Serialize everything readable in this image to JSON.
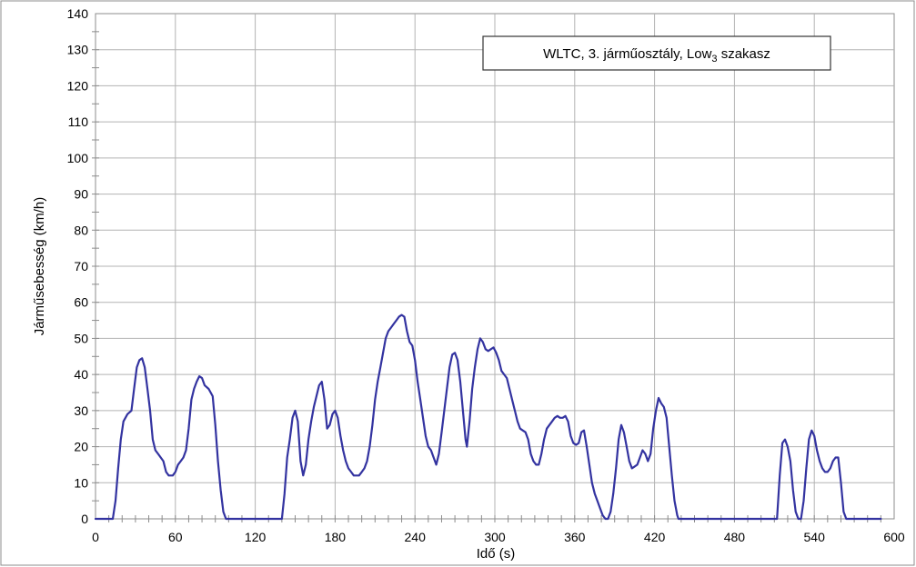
{
  "chart_data": {
    "type": "line",
    "xlabel": "Idő (s)",
    "ylabel": "Járműsebesség (km/h)",
    "legend": {
      "main": "WLTC, 3. járműosztály, Low",
      "subscript": "3",
      "suffix": " szakasz",
      "placement": "top-right"
    },
    "xlim": [
      0,
      600
    ],
    "ylim": [
      0,
      140
    ],
    "xticks": [
      0,
      60,
      120,
      180,
      240,
      300,
      360,
      420,
      480,
      540,
      600
    ],
    "xtick_labels": [
      "0",
      "60",
      "120",
      "180",
      "240",
      "300",
      "360",
      "420",
      "480",
      "540",
      "600"
    ],
    "yticks": [
      0,
      10,
      20,
      30,
      40,
      50,
      60,
      70,
      80,
      90,
      100,
      110,
      120,
      130,
      140
    ],
    "ytick_labels": [
      "0",
      "10",
      "20",
      "30",
      "40",
      "50",
      "60",
      "70",
      "80",
      "90",
      "100",
      "110",
      "120",
      "130",
      "140"
    ],
    "grid": true,
    "line_color": "#3333a0",
    "series": [
      {
        "points": [
          [
            0,
            0
          ],
          [
            11,
            0
          ],
          [
            13,
            0
          ],
          [
            15,
            5
          ],
          [
            17,
            14
          ],
          [
            19,
            22
          ],
          [
            21,
            27
          ],
          [
            24,
            29
          ],
          [
            27,
            30
          ],
          [
            29,
            36
          ],
          [
            31,
            42
          ],
          [
            33,
            44
          ],
          [
            35,
            44.5
          ],
          [
            37,
            42
          ],
          [
            39,
            36
          ],
          [
            41,
            30
          ],
          [
            43,
            22
          ],
          [
            45,
            19
          ],
          [
            47,
            18
          ],
          [
            49,
            17
          ],
          [
            51,
            16
          ],
          [
            53,
            13
          ],
          [
            55,
            12
          ],
          [
            58,
            12
          ],
          [
            60,
            13
          ],
          [
            62,
            15
          ],
          [
            64,
            16
          ],
          [
            66,
            17
          ],
          [
            68,
            19
          ],
          [
            70,
            25
          ],
          [
            72,
            33
          ],
          [
            74,
            36
          ],
          [
            76,
            38
          ],
          [
            78,
            39.5
          ],
          [
            80,
            39
          ],
          [
            82,
            37
          ],
          [
            85,
            36
          ],
          [
            88,
            34
          ],
          [
            90,
            26
          ],
          [
            92,
            16
          ],
          [
            94,
            8
          ],
          [
            96,
            2
          ],
          [
            98,
            0
          ],
          [
            137,
            0
          ],
          [
            140,
            0
          ],
          [
            142,
            7
          ],
          [
            144,
            17
          ],
          [
            146,
            22
          ],
          [
            148,
            28
          ],
          [
            150,
            30
          ],
          [
            152,
            27
          ],
          [
            154,
            16
          ],
          [
            156,
            12
          ],
          [
            158,
            15
          ],
          [
            160,
            22
          ],
          [
            162,
            27
          ],
          [
            164,
            31
          ],
          [
            166,
            34
          ],
          [
            168,
            37
          ],
          [
            170,
            38
          ],
          [
            172,
            33
          ],
          [
            174,
            25
          ],
          [
            176,
            26
          ],
          [
            178,
            29
          ],
          [
            180,
            30
          ],
          [
            182,
            28
          ],
          [
            184,
            23
          ],
          [
            186,
            19
          ],
          [
            188,
            16
          ],
          [
            190,
            14
          ],
          [
            192,
            13
          ],
          [
            194,
            12
          ],
          [
            198,
            12
          ],
          [
            200,
            13
          ],
          [
            202,
            14
          ],
          [
            204,
            16
          ],
          [
            206,
            20
          ],
          [
            208,
            26
          ],
          [
            210,
            33
          ],
          [
            212,
            38
          ],
          [
            214,
            42
          ],
          [
            216,
            46
          ],
          [
            218,
            50
          ],
          [
            220,
            52
          ],
          [
            222,
            53
          ],
          [
            224,
            54
          ],
          [
            226,
            55
          ],
          [
            228,
            56
          ],
          [
            230,
            56.5
          ],
          [
            232,
            56
          ],
          [
            234,
            52
          ],
          [
            236,
            49
          ],
          [
            238,
            48
          ],
          [
            240,
            44
          ],
          [
            242,
            38
          ],
          [
            244,
            33
          ],
          [
            246,
            28
          ],
          [
            248,
            23
          ],
          [
            250,
            20
          ],
          [
            252,
            19
          ],
          [
            254,
            17
          ],
          [
            256,
            15
          ],
          [
            258,
            18
          ],
          [
            260,
            24
          ],
          [
            262,
            30
          ],
          [
            264,
            36
          ],
          [
            266,
            42
          ],
          [
            268,
            45.5
          ],
          [
            270,
            46
          ],
          [
            272,
            44
          ],
          [
            274,
            38
          ],
          [
            276,
            30
          ],
          [
            278,
            22
          ],
          [
            279,
            20
          ],
          [
            281,
            27
          ],
          [
            283,
            36
          ],
          [
            285,
            42
          ],
          [
            287,
            47
          ],
          [
            289,
            50
          ],
          [
            291,
            49
          ],
          [
            293,
            47
          ],
          [
            295,
            46.5
          ],
          [
            297,
            47
          ],
          [
            299,
            47.5
          ],
          [
            301,
            46
          ],
          [
            303,
            44
          ],
          [
            305,
            41
          ],
          [
            307,
            40
          ],
          [
            309,
            39
          ],
          [
            311,
            36
          ],
          [
            313,
            33
          ],
          [
            315,
            30
          ],
          [
            317,
            27
          ],
          [
            319,
            25
          ],
          [
            321,
            24.5
          ],
          [
            323,
            24
          ],
          [
            325,
            22
          ],
          [
            327,
            18
          ],
          [
            329,
            16
          ],
          [
            331,
            15
          ],
          [
            333,
            15
          ],
          [
            335,
            18
          ],
          [
            337,
            22
          ],
          [
            339,
            25
          ],
          [
            341,
            26
          ],
          [
            343,
            27
          ],
          [
            345,
            28
          ],
          [
            347,
            28.5
          ],
          [
            349,
            28
          ],
          [
            351,
            28
          ],
          [
            353,
            28.5
          ],
          [
            355,
            27
          ],
          [
            357,
            23
          ],
          [
            359,
            21
          ],
          [
            361,
            20.5
          ],
          [
            363,
            21
          ],
          [
            365,
            24
          ],
          [
            367,
            24.5
          ],
          [
            369,
            20
          ],
          [
            371,
            15
          ],
          [
            373,
            10
          ],
          [
            375,
            7
          ],
          [
            377,
            5
          ],
          [
            379,
            3
          ],
          [
            381,
            1
          ],
          [
            383,
            0
          ],
          [
            385,
            0
          ],
          [
            387,
            2
          ],
          [
            389,
            7
          ],
          [
            391,
            14
          ],
          [
            393,
            22
          ],
          [
            395,
            26
          ],
          [
            397,
            24
          ],
          [
            399,
            20
          ],
          [
            401,
            16
          ],
          [
            403,
            14
          ],
          [
            405,
            14.5
          ],
          [
            407,
            15
          ],
          [
            409,
            17
          ],
          [
            411,
            19
          ],
          [
            413,
            18
          ],
          [
            415,
            16
          ],
          [
            417,
            18
          ],
          [
            419,
            25
          ],
          [
            421,
            30
          ],
          [
            423,
            33.5
          ],
          [
            425,
            32
          ],
          [
            427,
            31
          ],
          [
            429,
            28
          ],
          [
            431,
            20
          ],
          [
            433,
            12
          ],
          [
            435,
            5
          ],
          [
            437,
            1
          ],
          [
            438,
            0
          ],
          [
            510,
            0
          ],
          [
            512,
            0
          ],
          [
            514,
            12
          ],
          [
            516,
            21
          ],
          [
            518,
            22
          ],
          [
            520,
            20
          ],
          [
            522,
            16
          ],
          [
            524,
            8
          ],
          [
            526,
            2
          ],
          [
            528,
            0
          ],
          [
            530,
            0
          ],
          [
            532,
            5
          ],
          [
            534,
            14
          ],
          [
            536,
            22
          ],
          [
            538,
            24.5
          ],
          [
            540,
            23
          ],
          [
            542,
            19
          ],
          [
            544,
            16
          ],
          [
            546,
            14
          ],
          [
            548,
            13
          ],
          [
            550,
            13
          ],
          [
            552,
            14
          ],
          [
            554,
            16
          ],
          [
            556,
            17
          ],
          [
            558,
            17
          ],
          [
            560,
            10
          ],
          [
            562,
            2
          ],
          [
            564,
            0
          ],
          [
            590,
            0
          ]
        ]
      }
    ]
  }
}
